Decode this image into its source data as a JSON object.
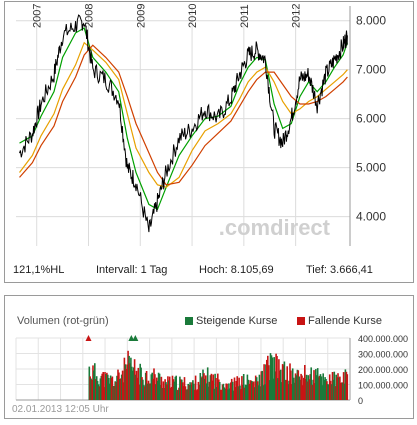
{
  "chart_data": [
    {
      "type": "line",
      "ylim": [
        3400,
        8300
      ],
      "y_ticks": [
        4000,
        5000,
        6000,
        7000,
        8000
      ],
      "y_tick_labels": [
        "4.000",
        "5.000",
        "6.000",
        "7.000",
        "8.000"
      ],
      "x_labels": [
        "2007",
        "2008",
        "2009",
        "2010",
        "2011",
        "2012"
      ],
      "x": [
        "2006-09",
        "2006-12",
        "2007-02",
        "2007-05",
        "2007-07",
        "2007-10",
        "2007-12",
        "2008-02",
        "2008-05",
        "2008-08",
        "2008-10",
        "2008-12",
        "2009-03",
        "2009-05",
        "2009-07",
        "2009-10",
        "2010-01",
        "2010-04",
        "2010-07",
        "2010-10",
        "2010-12",
        "2011-02",
        "2011-04",
        "2011-06",
        "2011-08",
        "2011-10",
        "2011-12",
        "2012-02",
        "2012-04",
        "2012-06",
        "2012-08",
        "2012-10",
        "2012-12",
        "2013-01"
      ],
      "series": [
        {
          "role": "price",
          "color": "#000000",
          "values": [
            5300,
            5700,
            6300,
            6900,
            7700,
            7900,
            8000,
            7000,
            6800,
            6400,
            5000,
            4700,
            3700,
            4300,
            4900,
            5600,
            5800,
            6200,
            6000,
            6400,
            6900,
            7300,
            7400,
            7200,
            5800,
            5500,
            6000,
            6800,
            6900,
            6300,
            6900,
            7200,
            7500,
            7700
          ]
        },
        {
          "role": "moving-average-38",
          "color": "#00a000",
          "values": [
            5500,
            5650,
            6050,
            6550,
            7250,
            7750,
            7850,
            7250,
            6950,
            6550,
            5600,
            4900,
            4250,
            4150,
            4600,
            5250,
            5650,
            6000,
            6050,
            6250,
            6700,
            7050,
            7250,
            7200,
            6300,
            5800,
            5900,
            6450,
            6750,
            6550,
            6750,
            7050,
            7300,
            7550
          ]
        },
        {
          "role": "moving-average-100",
          "color": "#e8a000",
          "values": [
            4900,
            5250,
            5650,
            6100,
            6600,
            7100,
            7550,
            7400,
            7150,
            6800,
            6100,
            5400,
            4900,
            4650,
            4600,
            4800,
            5350,
            5750,
            5900,
            6100,
            6400,
            6750,
            6950,
            7050,
            6750,
            6350,
            6100,
            6200,
            6350,
            6450,
            6600,
            6750,
            6900,
            7000
          ]
        },
        {
          "role": "moving-average-200",
          "color": "#d04000",
          "values": [
            4800,
            5100,
            5450,
            5850,
            6350,
            6850,
            7300,
            7500,
            7250,
            6950,
            6450,
            5900,
            5300,
            4900,
            4650,
            4700,
            5050,
            5450,
            5700,
            5950,
            6250,
            6550,
            6800,
            6950,
            6950,
            6700,
            6450,
            6300,
            6300,
            6350,
            6450,
            6600,
            6750,
            6850
          ]
        }
      ],
      "watermark": ".comdirect",
      "stats": {
        "hl": "121,1%HL",
        "interval": "Intervall: 1 Tag",
        "high": "Hoch:  8.105,69",
        "low": "Tief:  3.666,41"
      }
    },
    {
      "type": "bar",
      "title": "Volumen (rot-grün)",
      "legend": [
        {
          "name": "Steigende Kurse",
          "color": "#1a7a3a"
        },
        {
          "name": "Fallende Kurse",
          "color": "#c81414"
        }
      ],
      "ylim": [
        0,
        400000000
      ],
      "y_ticks": [
        0,
        100000000,
        200000000,
        300000000,
        400000000
      ],
      "y_tick_labels": [
        "0",
        "100.000.000",
        "200.000.000",
        "300.000.000",
        "400.000.000"
      ],
      "x": [
        "2008-01",
        "2008-04",
        "2008-07",
        "2008-10",
        "2009-01",
        "2009-04",
        "2009-07",
        "2009-10",
        "2010-01",
        "2010-04",
        "2010-07",
        "2010-10",
        "2011-01",
        "2011-04",
        "2011-07",
        "2011-10",
        "2012-01",
        "2012-04",
        "2012-07",
        "2012-10",
        "2013-01"
      ],
      "values": [
        190000000,
        140000000,
        120000000,
        220000000,
        160000000,
        150000000,
        110000000,
        110000000,
        100000000,
        150000000,
        120000000,
        100000000,
        120000000,
        110000000,
        230000000,
        180000000,
        150000000,
        160000000,
        140000000,
        130000000,
        140000000
      ],
      "spike_markers": [
        "2008-01",
        "2008-10",
        "2008-10"
      ]
    }
  ],
  "timestamp": "02.01.2013 12:05 Uhr"
}
